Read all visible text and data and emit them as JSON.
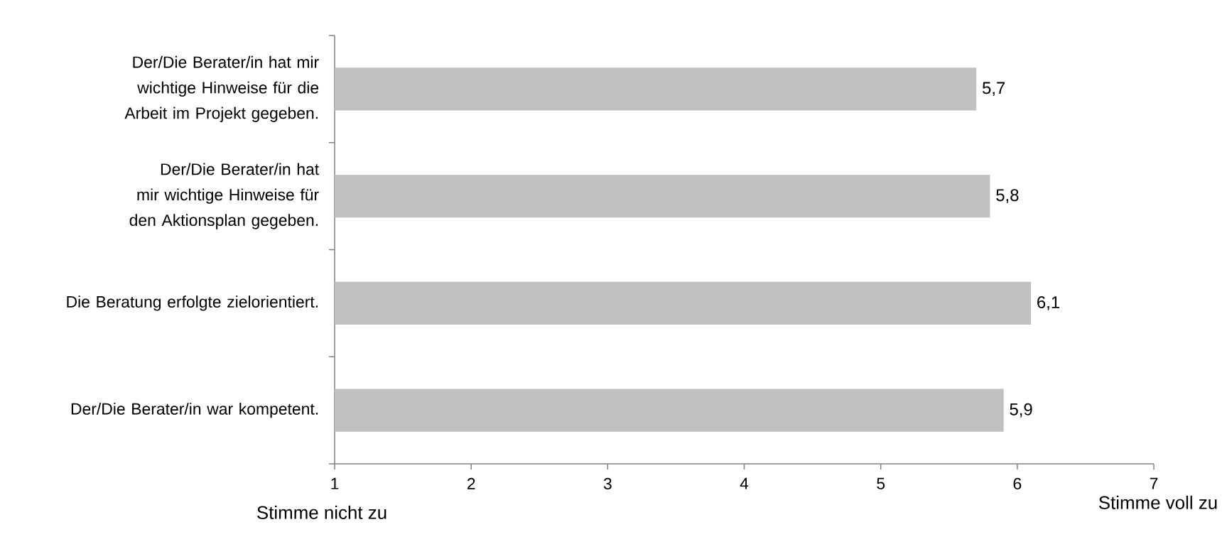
{
  "chart_data": {
    "type": "bar",
    "orientation": "horizontal",
    "categories": [
      "Der/Die Berater/in hat mir wichtige Hinweise für die Arbeit im Projekt gegeben.",
      "Der/Die Berater/in hat mir wichtige Hinweise für den Aktionsplan gegeben.",
      "Die Beratung erfolgte zielorientiert.",
      "Der/Die Berater/in war kompetent."
    ],
    "values": [
      5.7,
      5.8,
      6.1,
      5.9
    ],
    "value_labels": [
      "5,7",
      "5,8",
      "6,1",
      "5,9"
    ],
    "color": "#c0c0c0",
    "xlim": [
      1,
      7
    ],
    "xticks": [
      1,
      2,
      3,
      4,
      5,
      6,
      7
    ],
    "grid": false,
    "annotations": [
      "Stimme nicht zu",
      "Stimme voll zu"
    ]
  }
}
